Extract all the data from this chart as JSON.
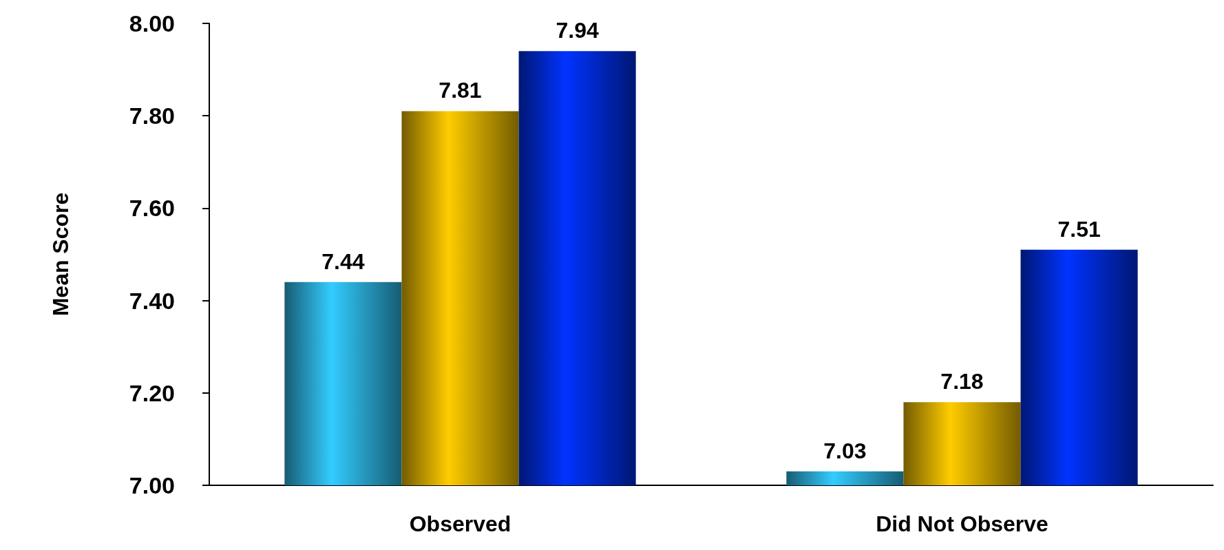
{
  "chart_data": {
    "type": "bar",
    "ylabel": "Mean Score",
    "categories": [
      "Observed",
      "Did Not Observe"
    ],
    "series": [
      {
        "color": "#33ccff",
        "values": [
          7.44,
          7.03
        ]
      },
      {
        "color": "#ffcc00",
        "values": [
          7.81,
          7.18
        ]
      },
      {
        "color": "#0033ff",
        "values": [
          7.94,
          7.51
        ]
      }
    ],
    "ylim": [
      7.0,
      8.0
    ],
    "yticks": [
      {
        "value": 7.0,
        "label": "7.00"
      },
      {
        "value": 7.2,
        "label": "7.20"
      },
      {
        "value": 7.4,
        "label": "7.40"
      },
      {
        "value": 7.6,
        "label": "7.60"
      },
      {
        "value": 7.8,
        "label": "7.80"
      },
      {
        "value": 8.0,
        "label": "8.00"
      }
    ],
    "grid": false,
    "data_labels": true
  }
}
